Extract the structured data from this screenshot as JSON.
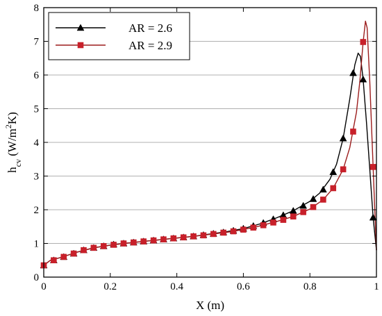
{
  "chart_data": {
    "type": "line",
    "xlabel": "X (m)",
    "ylabel": {
      "main": "h",
      "sub": "cv",
      "unit_open": " (W/m",
      "sup": "2",
      "unit_close": "K)"
    },
    "xlim": [
      0,
      1
    ],
    "ylim": [
      0,
      8
    ],
    "x_ticks": [
      "0",
      "0.2",
      "0.4",
      "0.6",
      "0.8",
      "1"
    ],
    "y_ticks": [
      "0",
      "1",
      "2",
      "3",
      "4",
      "5",
      "6",
      "7",
      "8"
    ],
    "grid": "horizontal",
    "legend_position": "top-left",
    "series": [
      {
        "name": "AR = 2.6",
        "color": "#000000",
        "marker": "triangle",
        "markers": [
          [
            0,
            0.35
          ],
          [
            0.03,
            0.5
          ],
          [
            0.06,
            0.6
          ],
          [
            0.09,
            0.7
          ],
          [
            0.12,
            0.8
          ],
          [
            0.15,
            0.87
          ],
          [
            0.18,
            0.92
          ],
          [
            0.21,
            0.97
          ],
          [
            0.24,
            1.0
          ],
          [
            0.27,
            1.03
          ],
          [
            0.3,
            1.06
          ],
          [
            0.33,
            1.09
          ],
          [
            0.36,
            1.12
          ],
          [
            0.39,
            1.15
          ],
          [
            0.42,
            1.18
          ],
          [
            0.45,
            1.21
          ],
          [
            0.48,
            1.25
          ],
          [
            0.51,
            1.29
          ],
          [
            0.54,
            1.33
          ],
          [
            0.57,
            1.38
          ],
          [
            0.6,
            1.44
          ],
          [
            0.63,
            1.52
          ],
          [
            0.66,
            1.61
          ],
          [
            0.69,
            1.72
          ],
          [
            0.72,
            1.84
          ],
          [
            0.75,
            1.97
          ],
          [
            0.78,
            2.12
          ],
          [
            0.81,
            2.32
          ],
          [
            0.84,
            2.6
          ],
          [
            0.87,
            3.12
          ],
          [
            0.9,
            4.12
          ],
          [
            0.93,
            6.06
          ],
          [
            0.96,
            5.87
          ],
          [
            0.99,
            1.77
          ]
        ],
        "curve": [
          [
            0,
            0.35
          ],
          [
            0.02,
            0.5
          ],
          [
            0.05,
            0.58
          ],
          [
            0.1,
            0.74
          ],
          [
            0.15,
            0.87
          ],
          [
            0.2,
            0.95
          ],
          [
            0.25,
            1.01
          ],
          [
            0.3,
            1.06
          ],
          [
            0.35,
            1.11
          ],
          [
            0.4,
            1.16
          ],
          [
            0.45,
            1.21
          ],
          [
            0.5,
            1.28
          ],
          [
            0.55,
            1.35
          ],
          [
            0.6,
            1.44
          ],
          [
            0.65,
            1.58
          ],
          [
            0.7,
            1.76
          ],
          [
            0.75,
            1.97
          ],
          [
            0.8,
            2.25
          ],
          [
            0.83,
            2.5
          ],
          [
            0.86,
            2.9
          ],
          [
            0.88,
            3.35
          ],
          [
            0.9,
            4.12
          ],
          [
            0.92,
            5.3
          ],
          [
            0.935,
            6.3
          ],
          [
            0.945,
            6.65
          ],
          [
            0.952,
            6.55
          ],
          [
            0.96,
            5.87
          ],
          [
            0.97,
            4.6
          ],
          [
            0.98,
            3.2
          ],
          [
            0.99,
            1.77
          ],
          [
            1.0,
            0.8
          ]
        ]
      },
      {
        "name": "AR = 2.9",
        "color": "#9b1c1c",
        "marker": "square",
        "markers": [
          [
            0,
            0.35
          ],
          [
            0.03,
            0.5
          ],
          [
            0.06,
            0.6
          ],
          [
            0.09,
            0.7
          ],
          [
            0.12,
            0.8
          ],
          [
            0.15,
            0.87
          ],
          [
            0.18,
            0.92
          ],
          [
            0.21,
            0.96
          ],
          [
            0.24,
            1.0
          ],
          [
            0.27,
            1.03
          ],
          [
            0.3,
            1.06
          ],
          [
            0.33,
            1.09
          ],
          [
            0.36,
            1.12
          ],
          [
            0.39,
            1.15
          ],
          [
            0.42,
            1.18
          ],
          [
            0.45,
            1.21
          ],
          [
            0.48,
            1.24
          ],
          [
            0.51,
            1.28
          ],
          [
            0.54,
            1.32
          ],
          [
            0.57,
            1.36
          ],
          [
            0.6,
            1.41
          ],
          [
            0.63,
            1.47
          ],
          [
            0.66,
            1.54
          ],
          [
            0.69,
            1.62
          ],
          [
            0.72,
            1.7
          ],
          [
            0.75,
            1.8
          ],
          [
            0.78,
            1.93
          ],
          [
            0.81,
            2.08
          ],
          [
            0.84,
            2.3
          ],
          [
            0.87,
            2.64
          ],
          [
            0.9,
            3.2
          ],
          [
            0.93,
            4.32
          ],
          [
            0.96,
            6.98
          ],
          [
            0.99,
            3.27
          ]
        ],
        "curve": [
          [
            0,
            0.35
          ],
          [
            0.02,
            0.5
          ],
          [
            0.05,
            0.58
          ],
          [
            0.1,
            0.74
          ],
          [
            0.15,
            0.87
          ],
          [
            0.2,
            0.95
          ],
          [
            0.25,
            1.01
          ],
          [
            0.3,
            1.06
          ],
          [
            0.35,
            1.11
          ],
          [
            0.4,
            1.16
          ],
          [
            0.45,
            1.21
          ],
          [
            0.5,
            1.27
          ],
          [
            0.55,
            1.33
          ],
          [
            0.6,
            1.41
          ],
          [
            0.65,
            1.52
          ],
          [
            0.7,
            1.65
          ],
          [
            0.75,
            1.8
          ],
          [
            0.8,
            2.02
          ],
          [
            0.84,
            2.3
          ],
          [
            0.87,
            2.64
          ],
          [
            0.9,
            3.2
          ],
          [
            0.92,
            3.85
          ],
          [
            0.94,
            4.9
          ],
          [
            0.95,
            5.8
          ],
          [
            0.96,
            6.98
          ],
          [
            0.967,
            7.6
          ],
          [
            0.972,
            7.4
          ],
          [
            0.98,
            5.8
          ],
          [
            0.99,
            3.27
          ],
          [
            0.995,
            2.0
          ],
          [
            1.0,
            0.8
          ]
        ]
      }
    ]
  }
}
